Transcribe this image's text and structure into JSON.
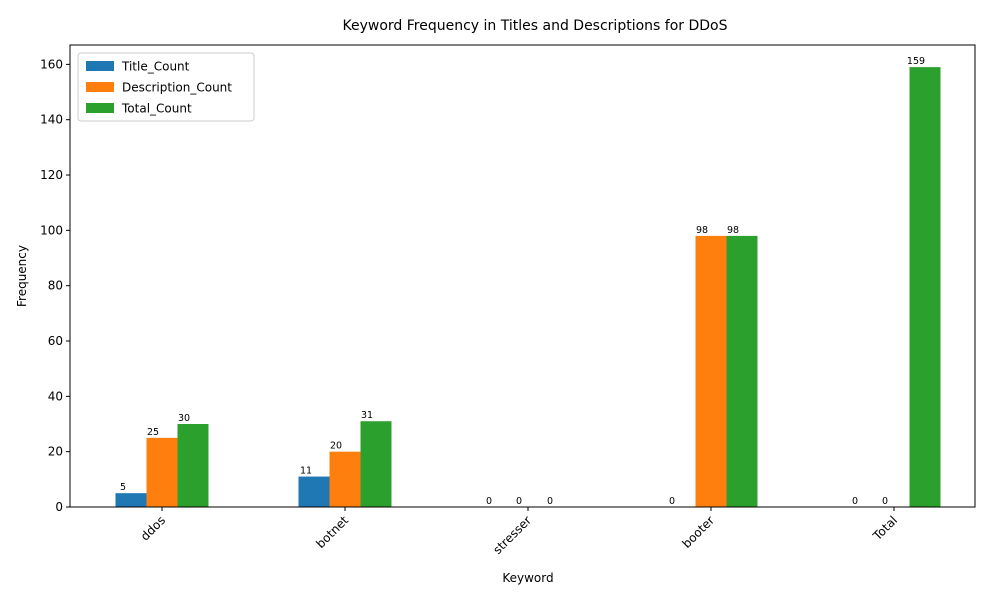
{
  "chart_data": {
    "type": "bar",
    "title": "Keyword Frequency in Titles and Descriptions for DDoS",
    "xlabel": "Keyword",
    "ylabel": "Frequency",
    "categories": [
      "ddos",
      "botnet",
      "stresser",
      "booter",
      "Total"
    ],
    "series": [
      {
        "name": "Title_Count",
        "color": "#1f77b4",
        "values": [
          5,
          11,
          0,
          0,
          0
        ]
      },
      {
        "name": "Description_Count",
        "color": "#ff7f0e",
        "values": [
          25,
          20,
          0,
          98,
          0
        ]
      },
      {
        "name": "Total_Count",
        "color": "#2ca02c",
        "values": [
          30,
          31,
          0,
          98,
          159
        ]
      }
    ],
    "data_labels": [
      [
        "5",
        "11",
        "0",
        "0",
        "0"
      ],
      [
        "25",
        "20",
        "0",
        "98",
        "0"
      ],
      [
        "30",
        "31",
        "0",
        "98",
        "159"
      ]
    ],
    "ylim": [
      0,
      167
    ],
    "yticks": [
      0,
      20,
      40,
      60,
      80,
      100,
      120,
      140,
      160
    ],
    "legend_position": "top-left",
    "grid": false
  }
}
